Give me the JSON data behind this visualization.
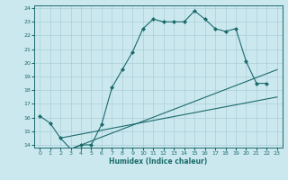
{
  "xlabel": "Humidex (Indice chaleur)",
  "bg_color": "#cce8ef",
  "grid_color": "#aacdd8",
  "line_color": "#1a6b6b",
  "xlim": [
    -0.5,
    23.5
  ],
  "ylim": [
    13.8,
    24.2
  ],
  "xticks": [
    0,
    1,
    2,
    3,
    4,
    5,
    6,
    7,
    8,
    9,
    10,
    11,
    12,
    13,
    14,
    15,
    16,
    17,
    18,
    19,
    20,
    21,
    22,
    23
  ],
  "yticks": [
    14,
    15,
    16,
    17,
    18,
    19,
    20,
    21,
    22,
    23,
    24
  ],
  "line1_x": [
    0,
    1,
    2,
    3,
    4,
    5,
    6,
    7,
    8,
    9,
    10,
    11,
    12,
    13,
    14,
    15,
    16,
    17,
    18,
    19,
    20,
    21,
    22
  ],
  "line1_y": [
    16.1,
    15.6,
    14.5,
    13.7,
    14.0,
    14.0,
    15.5,
    18.2,
    19.5,
    20.8,
    22.5,
    23.2,
    23.0,
    23.0,
    23.0,
    23.8,
    23.2,
    22.5,
    22.3,
    22.5,
    20.1,
    18.5,
    18.5
  ],
  "line2_x": [
    2,
    23
  ],
  "line2_y": [
    14.5,
    17.5
  ],
  "line3_x": [
    3,
    23
  ],
  "line3_y": [
    13.7,
    19.5
  ]
}
